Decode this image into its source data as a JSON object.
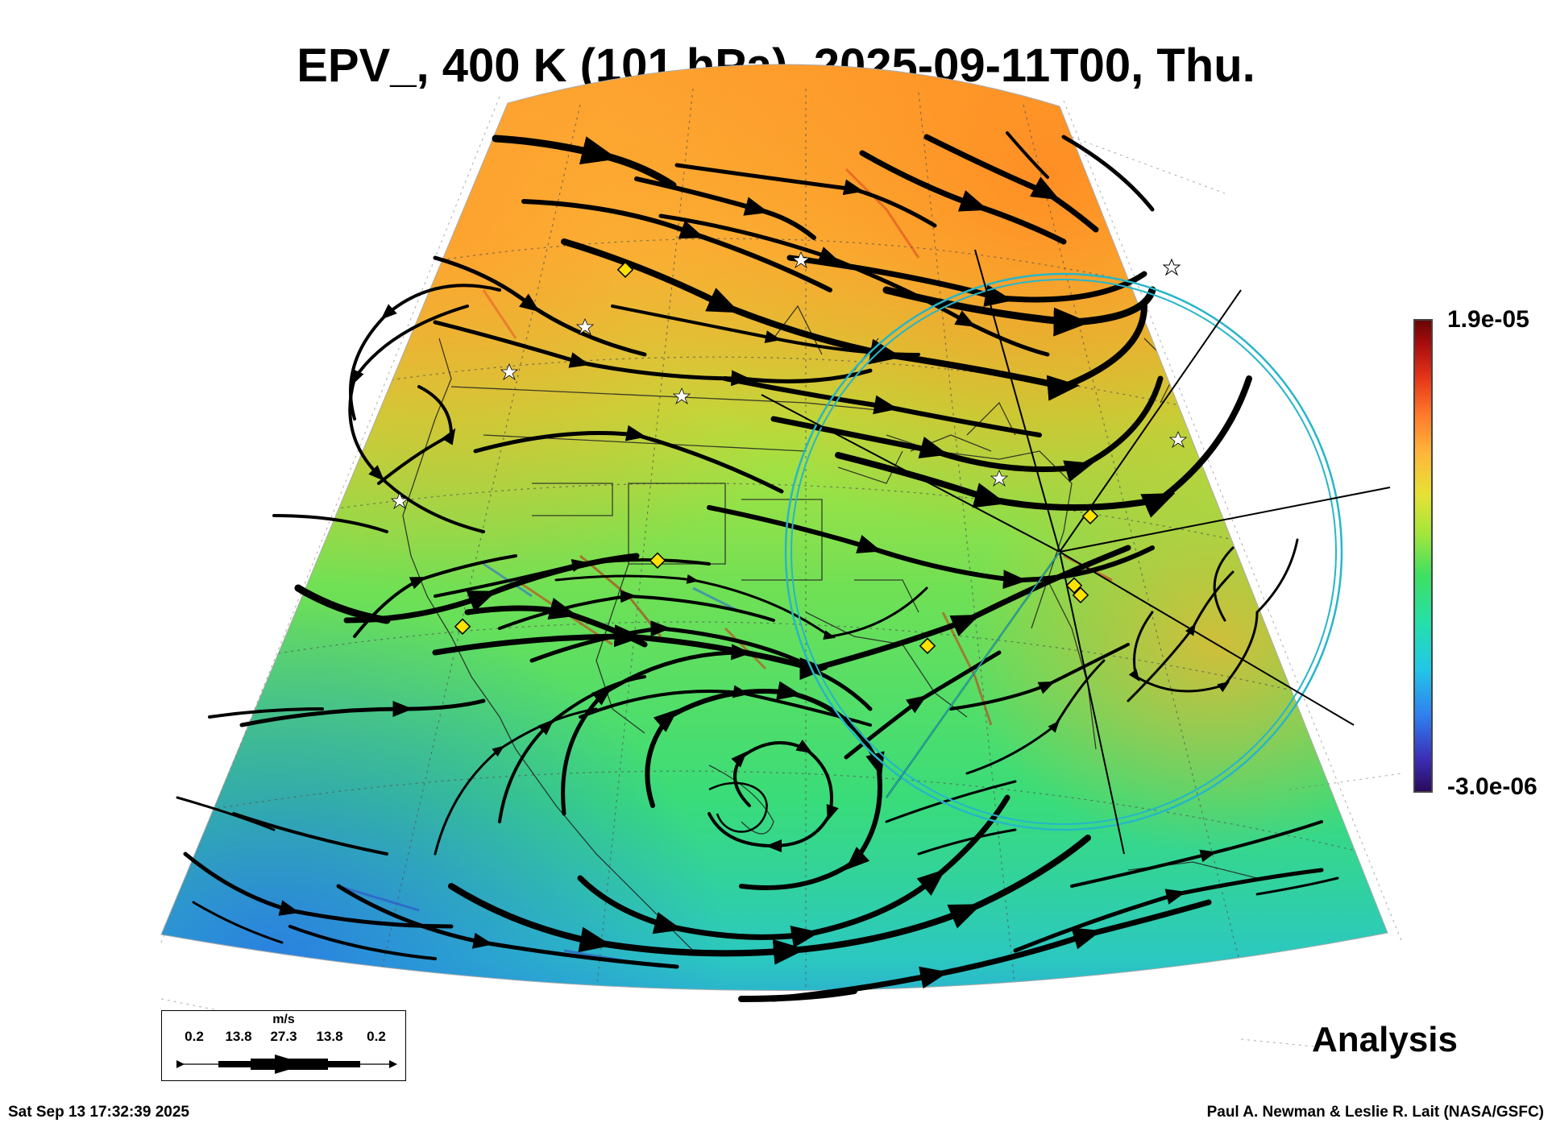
{
  "title": "EPV_, 400 K (101 hPa), 2025-09-11T00, Thu.",
  "colorbar": {
    "max_label": "1.9e-05",
    "min_label": "-3.0e-06",
    "colors": [
      "#2a0a5c",
      "#2f7ff0",
      "#25e0a8",
      "#a6e63a",
      "#ffb53a",
      "#e53318",
      "#6a0505"
    ]
  },
  "scale_legend": {
    "unit": "m/s",
    "ticks": [
      "0.2",
      "13.8",
      "27.3",
      "13.8",
      "0.2"
    ]
  },
  "analysis_label": "Analysis",
  "footer": {
    "timestamp": "Sat Sep 13 17:32:39 2025",
    "credit": "Paul A. Newman & Leslie R. Lait (NASA/GSFC)"
  }
}
